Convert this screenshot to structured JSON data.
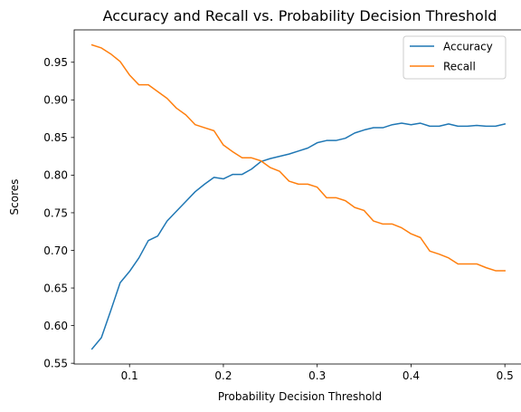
{
  "chart_data": {
    "type": "line",
    "title": "Accuracy and Recall vs. Probability Decision Threshold",
    "xlabel": "Probability Decision Threshold",
    "ylabel": "Scores",
    "xlim": [
      0.041,
      0.522
    ],
    "ylim": [
      0.549,
      0.993
    ],
    "xticks": [
      0.1,
      0.2,
      0.3,
      0.4,
      0.5
    ],
    "xtick_labels": [
      "0.1",
      "0.2",
      "0.3",
      "0.4",
      "0.5"
    ],
    "yticks": [
      0.55,
      0.6,
      0.65,
      0.7,
      0.75,
      0.8,
      0.85,
      0.9,
      0.95
    ],
    "ytick_labels": [
      "0.55",
      "0.60",
      "0.65",
      "0.70",
      "0.75",
      "0.80",
      "0.85",
      "0.90",
      "0.95"
    ],
    "grid": false,
    "legend_position": "top-right",
    "x": [
      0.06,
      0.07,
      0.08,
      0.09,
      0.1,
      0.11,
      0.12,
      0.13,
      0.14,
      0.15,
      0.16,
      0.17,
      0.18,
      0.19,
      0.2,
      0.21,
      0.22,
      0.23,
      0.24,
      0.25,
      0.26,
      0.27,
      0.28,
      0.29,
      0.3,
      0.31,
      0.32,
      0.33,
      0.34,
      0.35,
      0.36,
      0.37,
      0.38,
      0.39,
      0.4,
      0.41,
      0.42,
      0.43,
      0.44,
      0.45,
      0.46,
      0.47,
      0.48,
      0.49,
      0.5
    ],
    "series": [
      {
        "name": "Accuracy",
        "color": "#1f77b4",
        "values": [
          0.569,
          0.584,
          0.62,
          0.657,
          0.672,
          0.69,
          0.713,
          0.719,
          0.739,
          0.752,
          0.765,
          0.778,
          0.788,
          0.797,
          0.795,
          0.801,
          0.801,
          0.808,
          0.818,
          0.822,
          0.825,
          0.828,
          0.832,
          0.836,
          0.843,
          0.846,
          0.846,
          0.849,
          0.856,
          0.86,
          0.863,
          0.863,
          0.867,
          0.869,
          0.867,
          0.869,
          0.865,
          0.865,
          0.868,
          0.865,
          0.865,
          0.866,
          0.865,
          0.865,
          0.868
        ]
      },
      {
        "name": "Recall",
        "color": "#ff7f0e",
        "values": [
          0.973,
          0.969,
          0.961,
          0.951,
          0.933,
          0.92,
          0.92,
          0.911,
          0.902,
          0.889,
          0.88,
          0.867,
          0.863,
          0.859,
          0.84,
          0.831,
          0.823,
          0.823,
          0.819,
          0.81,
          0.805,
          0.792,
          0.788,
          0.788,
          0.784,
          0.77,
          0.77,
          0.766,
          0.757,
          0.753,
          0.739,
          0.735,
          0.735,
          0.73,
          0.722,
          0.717,
          0.699,
          0.695,
          0.69,
          0.682,
          0.682,
          0.682,
          0.677,
          0.673,
          0.673
        ]
      }
    ]
  }
}
